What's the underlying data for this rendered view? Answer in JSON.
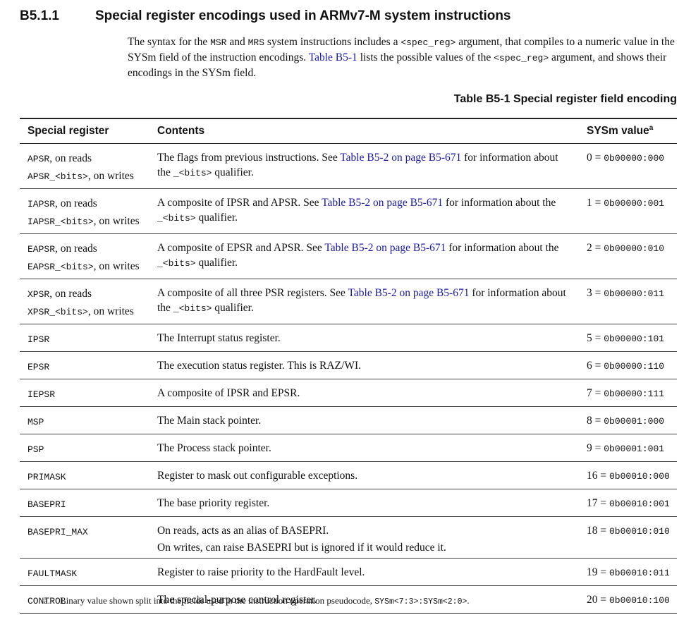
{
  "header": {
    "number": "B5.1.1",
    "title": "Special register encodings used in ARMv7-M system instructions"
  },
  "intro": [
    {
      "t": "The syntax for the "
    },
    {
      "t": "MSR",
      "s": "code"
    },
    {
      "t": " and "
    },
    {
      "t": "MRS",
      "s": "code"
    },
    {
      "t": " system instructions includes a "
    },
    {
      "t": "<spec_reg>",
      "s": "code"
    },
    {
      "t": " argument, that compiles to a numeric value in the SYSm field of the instruction encodings. "
    },
    {
      "t": "Table B5-1",
      "s": "link"
    },
    {
      "t": " lists the possible values of the "
    },
    {
      "t": "<spec_reg>",
      "s": "code"
    },
    {
      "t": " argument, and shows their encodings in the SYSm field."
    }
  ],
  "table": {
    "caption": "Table B5-1 Special register field encoding",
    "columns": [
      "Special register",
      "Contents",
      "SYSm value"
    ],
    "value_note_mark": "a",
    "rows": [
      {
        "register": [
          [
            {
              "t": "APSR",
              "s": "code"
            },
            {
              "t": ", on reads"
            }
          ],
          [
            {
              "t": "APSR_<bits>",
              "s": "code"
            },
            {
              "t": ", on writes"
            }
          ]
        ],
        "contents": [
          [
            {
              "t": "The flags from previous instructions. See "
            },
            {
              "t": "Table B5-2 on page B5-671",
              "s": "link"
            },
            {
              "t": " for information about the "
            },
            {
              "t": "_<bits>",
              "s": "code"
            },
            {
              "t": " qualifier."
            }
          ]
        ],
        "value": [
          {
            "t": "0 = "
          },
          {
            "t": "0b00000:000",
            "s": "code"
          }
        ]
      },
      {
        "register": [
          [
            {
              "t": "IAPSR",
              "s": "code"
            },
            {
              "t": ", on reads"
            }
          ],
          [
            {
              "t": "IAPSR_<bits>",
              "s": "code"
            },
            {
              "t": ", on writes"
            }
          ]
        ],
        "contents": [
          [
            {
              "t": "A composite of IPSR and APSR. See "
            },
            {
              "t": "Table B5-2 on page B5-671",
              "s": "link"
            },
            {
              "t": " for information about the "
            },
            {
              "t": "_<bits>",
              "s": "code"
            },
            {
              "t": " qualifier."
            }
          ]
        ],
        "value": [
          {
            "t": "1 = "
          },
          {
            "t": "0b00000:001",
            "s": "code"
          }
        ]
      },
      {
        "register": [
          [
            {
              "t": "EAPSR",
              "s": "code"
            },
            {
              "t": ", on reads"
            }
          ],
          [
            {
              "t": "EAPSR_<bits>",
              "s": "code"
            },
            {
              "t": ", on writes"
            }
          ]
        ],
        "contents": [
          [
            {
              "t": "A composite of EPSR and APSR. See "
            },
            {
              "t": "Table B5-2 on page B5-671",
              "s": "link"
            },
            {
              "t": " for information about the "
            },
            {
              "t": "_<bits>",
              "s": "code"
            },
            {
              "t": " qualifier."
            }
          ]
        ],
        "value": [
          {
            "t": "2 = "
          },
          {
            "t": "0b00000:010",
            "s": "code"
          }
        ]
      },
      {
        "register": [
          [
            {
              "t": "XPSR",
              "s": "code"
            },
            {
              "t": ", on reads"
            }
          ],
          [
            {
              "t": "XPSR_<bits>",
              "s": "code"
            },
            {
              "t": ", on writes"
            }
          ]
        ],
        "contents": [
          [
            {
              "t": "A composite of all three PSR registers. See "
            },
            {
              "t": "Table B5-2 on page B5-671",
              "s": "link"
            },
            {
              "t": " for information about the "
            },
            {
              "t": "_<bits>",
              "s": "code"
            },
            {
              "t": " qualifier."
            }
          ]
        ],
        "value": [
          {
            "t": "3 = "
          },
          {
            "t": "0b00000:011",
            "s": "code"
          }
        ]
      },
      {
        "register": [
          [
            {
              "t": "IPSR",
              "s": "code"
            }
          ]
        ],
        "contents": [
          [
            {
              "t": "The Interrupt status register."
            }
          ]
        ],
        "value": [
          {
            "t": "5 = "
          },
          {
            "t": "0b00000:101",
            "s": "code"
          }
        ]
      },
      {
        "register": [
          [
            {
              "t": "EPSR",
              "s": "code"
            }
          ]
        ],
        "contents": [
          [
            {
              "t": "The execution status register. This is RAZ/WI."
            }
          ]
        ],
        "value": [
          {
            "t": "6 = "
          },
          {
            "t": "0b00000:110",
            "s": "code"
          }
        ]
      },
      {
        "register": [
          [
            {
              "t": "IEPSR",
              "s": "code"
            }
          ]
        ],
        "contents": [
          [
            {
              "t": "A composite of IPSR and EPSR."
            }
          ]
        ],
        "value": [
          {
            "t": "7 = "
          },
          {
            "t": "0b00000:111",
            "s": "code"
          }
        ]
      },
      {
        "register": [
          [
            {
              "t": "MSP",
              "s": "code"
            }
          ]
        ],
        "contents": [
          [
            {
              "t": "The Main stack pointer."
            }
          ]
        ],
        "value": [
          {
            "t": "8 = "
          },
          {
            "t": "0b00001:000",
            "s": "code"
          }
        ]
      },
      {
        "register": [
          [
            {
              "t": "PSP",
              "s": "code"
            }
          ]
        ],
        "contents": [
          [
            {
              "t": "The Process stack pointer."
            }
          ]
        ],
        "value": [
          {
            "t": "9 = "
          },
          {
            "t": "0b00001:001",
            "s": "code"
          }
        ]
      },
      {
        "register": [
          [
            {
              "t": "PRIMASK",
              "s": "code"
            }
          ]
        ],
        "contents": [
          [
            {
              "t": "Register to mask out configurable exceptions."
            }
          ]
        ],
        "value": [
          {
            "t": "16 = "
          },
          {
            "t": "0b00010:000",
            "s": "code"
          }
        ]
      },
      {
        "register": [
          [
            {
              "t": "BASEPRI",
              "s": "code"
            }
          ]
        ],
        "contents": [
          [
            {
              "t": "The base priority register."
            }
          ]
        ],
        "value": [
          {
            "t": "17 = "
          },
          {
            "t": "0b00010:001",
            "s": "code"
          }
        ]
      },
      {
        "register": [
          [
            {
              "t": "BASEPRI_MAX",
              "s": "code"
            }
          ]
        ],
        "contents": [
          [
            {
              "t": "On reads, acts as an alias of BASEPRI."
            }
          ],
          [
            {
              "t": "On writes, can raise BASEPRI but is ignored if it would reduce it."
            }
          ]
        ],
        "value": [
          {
            "t": "18 = "
          },
          {
            "t": "0b00010:010",
            "s": "code"
          }
        ]
      },
      {
        "register": [
          [
            {
              "t": "FAULTMASK",
              "s": "code"
            }
          ]
        ],
        "contents": [
          [
            {
              "t": "Register to raise priority to the HardFault level."
            }
          ]
        ],
        "value": [
          {
            "t": "19 = "
          },
          {
            "t": "0b00010:011",
            "s": "code"
          }
        ]
      },
      {
        "register": [
          [
            {
              "t": "CONTROL",
              "s": "code"
            }
          ]
        ],
        "contents": [
          [
            {
              "t": "The special-purpose control register."
            }
          ]
        ],
        "value": [
          {
            "t": "20 = "
          },
          {
            "t": "0b00010:100",
            "s": "code"
          }
        ]
      }
    ]
  },
  "footnote": {
    "mark": "a.",
    "text": [
      {
        "t": "Binary value shown split into the fields used in the instruction operation pseudocode, "
      },
      {
        "t": "SYSm<7:3>:SYSm<2:0>",
        "s": "code"
      },
      {
        "t": "."
      }
    ]
  }
}
